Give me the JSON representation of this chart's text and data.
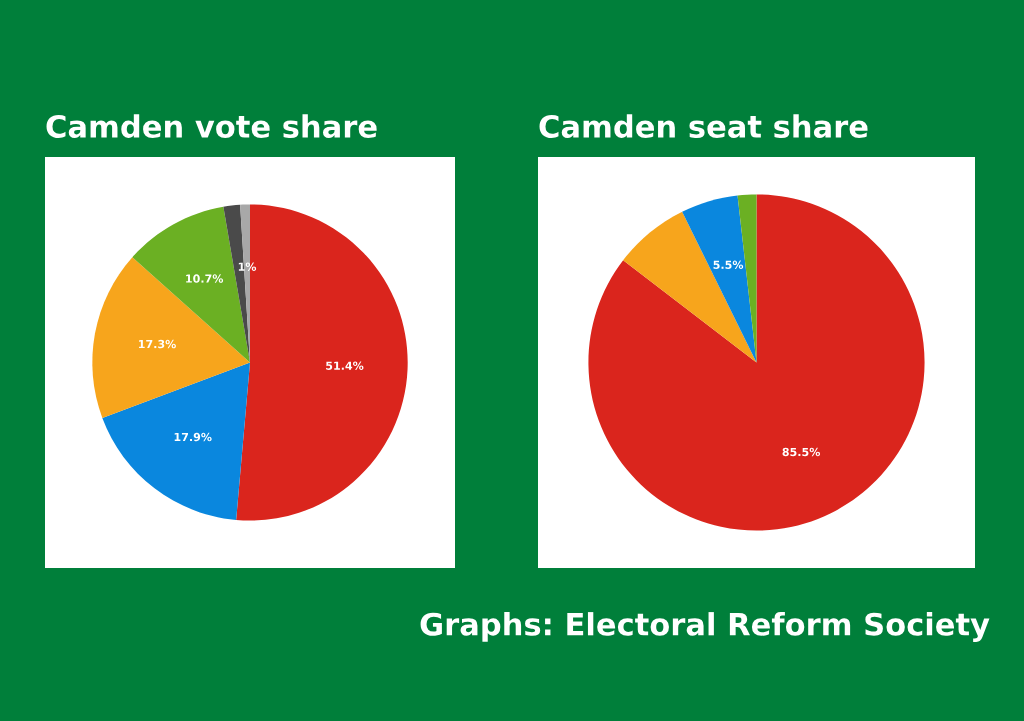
{
  "chart_data": [
    {
      "type": "pie",
      "title": "Camden vote share",
      "categories": [
        null,
        null,
        null,
        null,
        null,
        null
      ],
      "values": [
        51.4,
        17.9,
        17.3,
        10.7,
        1.7,
        1
      ],
      "colors": [
        "#da251d",
        "#0a87de",
        "#f7a51c",
        "#6bb023",
        "#4a4a4a",
        "#a8a8a8"
      ],
      "value_labels": [
        "51.4%",
        "17.9%",
        "17.3%",
        "10.7%",
        null,
        "1%"
      ]
    },
    {
      "type": "pie",
      "title": "Camden seat share",
      "categories": [
        null,
        null,
        null,
        null
      ],
      "values": [
        85.5,
        7.3,
        5.5,
        1.8
      ],
      "colors": [
        "#da251d",
        "#f7a51c",
        "#0a87de",
        "#6bb023"
      ],
      "value_labels": [
        "85.5%",
        null,
        "5.5%",
        null
      ],
      "annotations": [
        "Graphs: Electoral Reform Society"
      ]
    }
  ]
}
